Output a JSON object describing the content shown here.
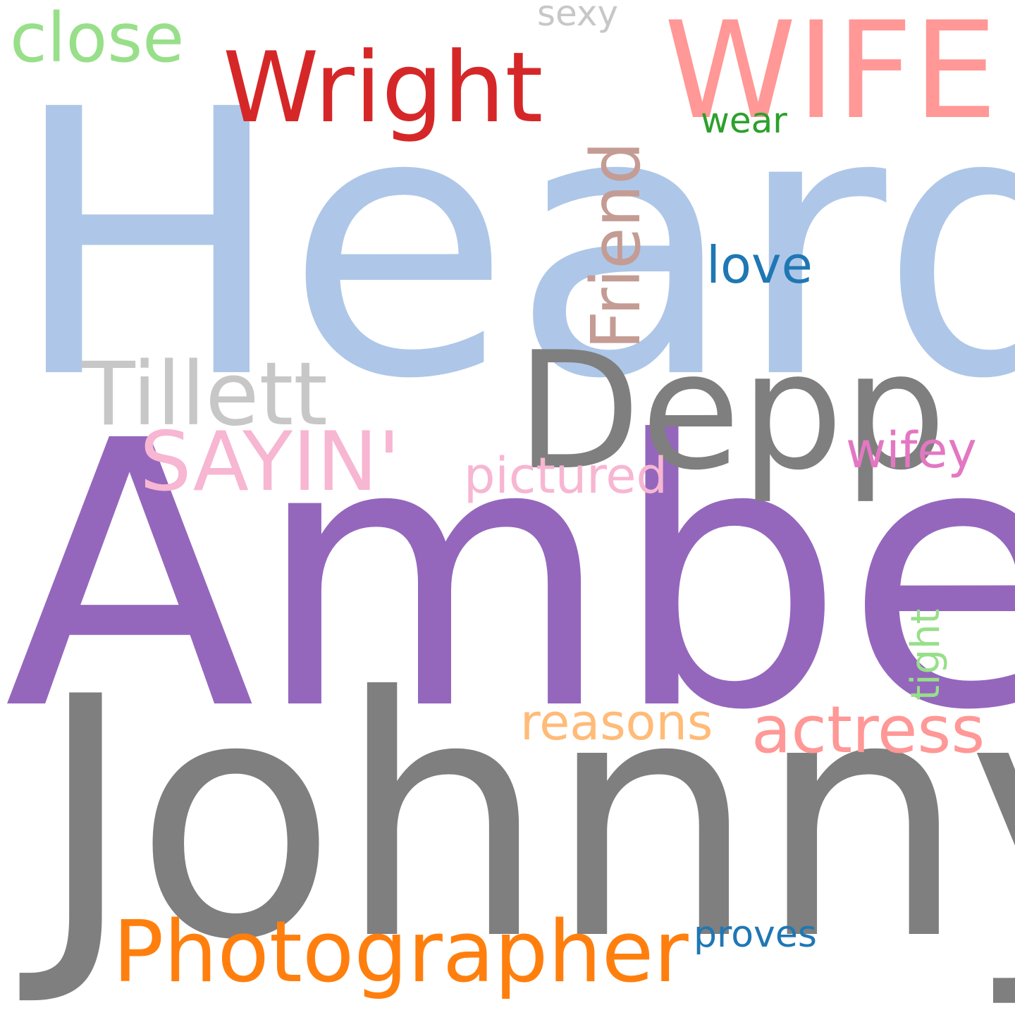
{
  "cloud": {
    "words": {
      "heard": {
        "text": "Heard",
        "color": "#aec7e8"
      },
      "amber": {
        "text": "Amber",
        "color": "#9467bd"
      },
      "johnny": {
        "text": "Johnny",
        "color": "#7f7f7f"
      },
      "depp": {
        "text": "Depp",
        "color": "#7f7f7f"
      },
      "wife": {
        "text": "WIFE",
        "color": "#ff9896"
      },
      "wright": {
        "text": "Wright",
        "color": "#d62728"
      },
      "tillett": {
        "text": "Tillett",
        "color": "#c7c7c7"
      },
      "photographer": {
        "text": "Photographer",
        "color": "#ff7f0e"
      },
      "close": {
        "text": "close",
        "color": "#98df8a"
      },
      "sayin": {
        "text": "SAYIN'",
        "color": "#f7b6d2"
      },
      "actress": {
        "text": "actress",
        "color": "#ff9896"
      },
      "reasons": {
        "text": "reasons",
        "color": "#ffbb78"
      },
      "pictured": {
        "text": "pictured",
        "color": "#f7b6d2"
      },
      "wifey": {
        "text": "wifey",
        "color": "#e377c2"
      },
      "love": {
        "text": "love",
        "color": "#1f77b4"
      },
      "proves": {
        "text": "proves",
        "color": "#1f77b4"
      },
      "wear": {
        "text": "wear",
        "color": "#2ca02c"
      },
      "sexy": {
        "text": "sexy",
        "color": "#c7c7c7"
      },
      "friend": {
        "text": "Friend",
        "color": "#c49c94"
      },
      "tight": {
        "text": "tight",
        "color": "#98df8a"
      }
    }
  }
}
